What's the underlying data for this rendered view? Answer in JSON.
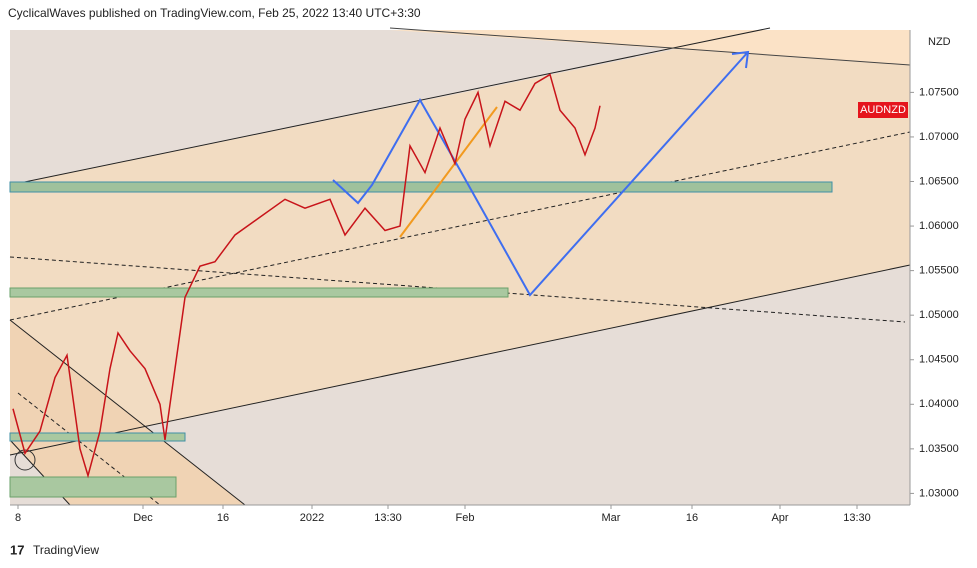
{
  "header": "CyclicalWaves published on TradingView.com, Feb 25, 2022 13:40 UTC+3:30",
  "footer": "TradingView",
  "chart_data": {
    "type": "line",
    "currency": "NZD",
    "symbol_label": "AUDNZD",
    "series": [
      {
        "name": "AUDNZD",
        "color": "#c8141a",
        "x": [
          3,
          15,
          30,
          45,
          57,
          70,
          78,
          90,
          100,
          108,
          120,
          135,
          150,
          155,
          165,
          175,
          190,
          205,
          225,
          250,
          275,
          295,
          320,
          335,
          355,
          375,
          390,
          400,
          415,
          430,
          445,
          455,
          468,
          480,
          495,
          510,
          525,
          540,
          550,
          565,
          575,
          585,
          590
        ],
        "values": [
          1.0395,
          1.0345,
          1.037,
          1.043,
          1.0455,
          1.035,
          1.032,
          1.037,
          1.044,
          1.048,
          1.046,
          1.044,
          1.04,
          1.036,
          1.044,
          1.052,
          1.0555,
          1.056,
          1.059,
          1.061,
          1.063,
          1.062,
          1.063,
          1.059,
          1.062,
          1.0595,
          1.06,
          1.069,
          1.066,
          1.071,
          1.067,
          1.072,
          1.075,
          1.069,
          1.074,
          1.073,
          1.076,
          1.077,
          1.073,
          1.071,
          1.068,
          1.071,
          1.0735
        ]
      }
    ],
    "xlim": [
      0,
      900
    ],
    "xticks": [
      {
        "value": 8,
        "label": "8"
      },
      {
        "value": 133,
        "label": "Dec"
      },
      {
        "value": 213,
        "label": "16"
      },
      {
        "value": 302,
        "label": "2022"
      },
      {
        "value": 378,
        "label": "13:30"
      },
      {
        "value": 455,
        "label": "Feb"
      },
      {
        "value": 601,
        "label": "Mar"
      },
      {
        "value": 682,
        "label": "16"
      },
      {
        "value": 770,
        "label": "Apr"
      },
      {
        "value": 847,
        "label": "13:30"
      }
    ],
    "ylim": [
      1.0287,
      1.082
    ],
    "yticks": [
      {
        "value": 1.03,
        "label": "1.03000"
      },
      {
        "value": 1.035,
        "label": "1.03500"
      },
      {
        "value": 1.04,
        "label": "1.04000"
      },
      {
        "value": 1.045,
        "label": "1.04500"
      },
      {
        "value": 1.05,
        "label": "1.05000"
      },
      {
        "value": 1.055,
        "label": "1.05500"
      },
      {
        "value": 1.06,
        "label": "1.06000"
      },
      {
        "value": 1.065,
        "label": "1.06500"
      },
      {
        "value": 1.07,
        "label": "1.07000"
      },
      {
        "value": 1.075,
        "label": "1.07500"
      }
    ]
  }
}
